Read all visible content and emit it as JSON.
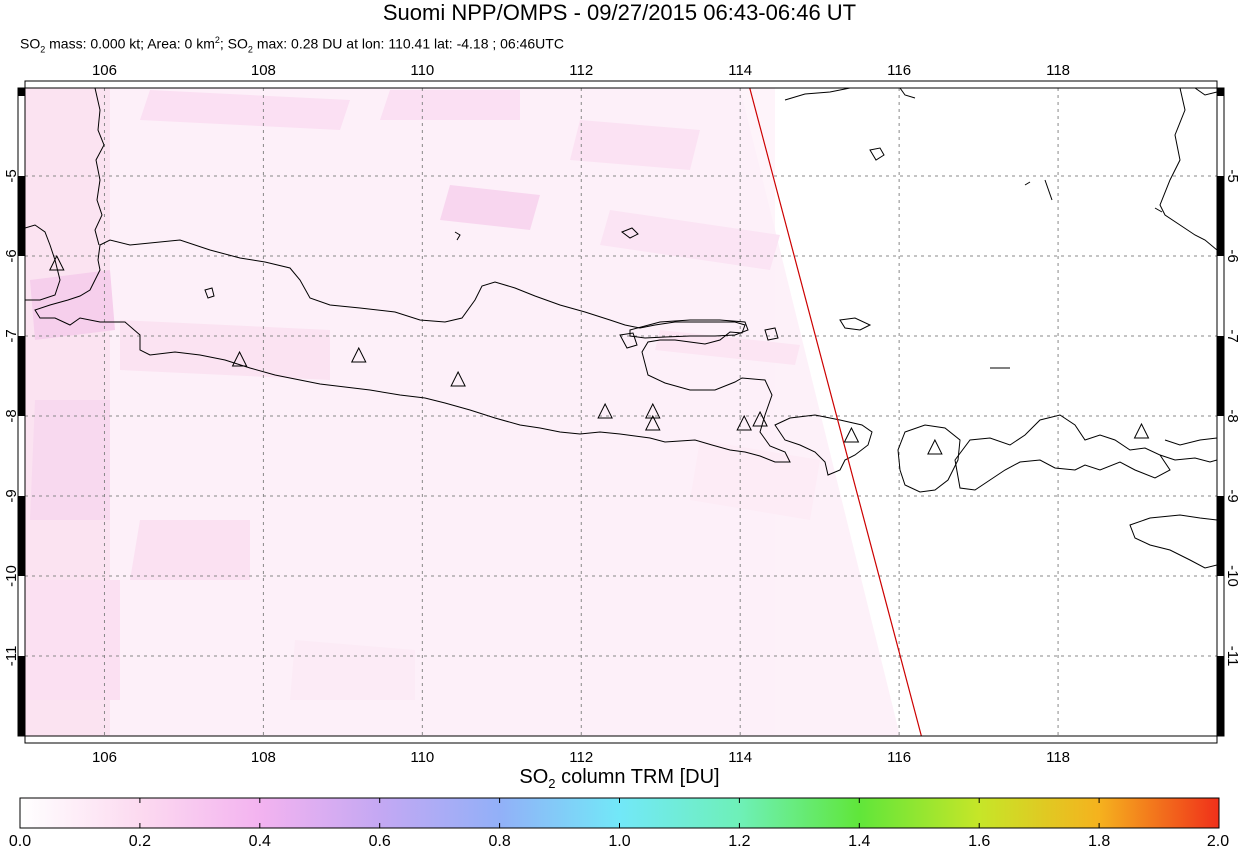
{
  "header": {
    "title": "Suomi NPP/OMPS - 09/27/2015 06:43-06:46 UT",
    "stats": {
      "so2_mass_label": "SO",
      "so2_mass_rest": " mass: 0.000 kt; Area: 0 km",
      "area_sup": "2",
      "so2_max_rest": "; SO",
      "so2_max_tail": " max: 0.28 DU at lon: 110.41 lat: -4.18 ; 06:46UTC"
    }
  },
  "map": {
    "lon_range": [
      105,
      120
    ],
    "lat_range": [
      -12,
      -3.9
    ],
    "lon_ticks": [
      "106",
      "108",
      "110",
      "112",
      "114",
      "116",
      "118"
    ],
    "lat_ticks": [
      "-5",
      "-6",
      "-7",
      "-8",
      "-9",
      "-10",
      "-11"
    ],
    "lon_tick_values": [
      106,
      108,
      110,
      112,
      114,
      116,
      118
    ],
    "lat_tick_values": [
      -5,
      -6,
      -7,
      -8,
      -9,
      -10,
      -11
    ],
    "grid": true,
    "colors": {
      "coastline": "#000000",
      "swath_edge": "#cc0000",
      "grid": "#888888",
      "so2_light": "#fde8f4",
      "so2_medium": "#f9d2ee"
    },
    "volcanoes": [
      {
        "lon": 105.4,
        "lat": -6.1
      },
      {
        "lon": 107.7,
        "lat": -7.3
      },
      {
        "lon": 109.2,
        "lat": -7.25
      },
      {
        "lon": 110.45,
        "lat": -7.55
      },
      {
        "lon": 112.3,
        "lat": -7.95
      },
      {
        "lon": 112.9,
        "lat": -7.95
      },
      {
        "lon": 112.9,
        "lat": -8.1
      },
      {
        "lon": 114.05,
        "lat": -8.1
      },
      {
        "lon": 114.25,
        "lat": -8.05
      },
      {
        "lon": 115.4,
        "lat": -8.25
      },
      {
        "lon": 116.45,
        "lat": -8.4
      },
      {
        "lon": 119.05,
        "lat": -8.2
      }
    ],
    "swath_edge": [
      {
        "lon": 114.12,
        "lat": -3.9
      },
      {
        "lon": 116.28,
        "lat": -12.0
      }
    ]
  },
  "colorbar": {
    "title_pre": "SO",
    "title_sub": "2",
    "title_post": " column TRM [DU]",
    "min": 0.0,
    "max": 2.0,
    "tick_labels": [
      "0.0",
      "0.2",
      "0.4",
      "0.6",
      "0.8",
      "1.0",
      "1.2",
      "1.4",
      "1.6",
      "1.8",
      "2.0"
    ],
    "tick_values": [
      0.0,
      0.2,
      0.4,
      0.6,
      0.8,
      1.0,
      1.2,
      1.4,
      1.6,
      1.8,
      2.0
    ],
    "gradient_stops": [
      {
        "v": 0.0,
        "c": "#ffffff"
      },
      {
        "v": 0.2,
        "c": "#fcdaf0"
      },
      {
        "v": 0.4,
        "c": "#f3b3f0"
      },
      {
        "v": 0.6,
        "c": "#c4a8f3"
      },
      {
        "v": 0.8,
        "c": "#92b0f8"
      },
      {
        "v": 1.0,
        "c": "#72e8f8"
      },
      {
        "v": 1.2,
        "c": "#6ef0b8"
      },
      {
        "v": 1.4,
        "c": "#60e63a"
      },
      {
        "v": 1.6,
        "c": "#c6e628"
      },
      {
        "v": 1.8,
        "c": "#f5b21e"
      },
      {
        "v": 2.0,
        "c": "#f0301a"
      }
    ]
  }
}
